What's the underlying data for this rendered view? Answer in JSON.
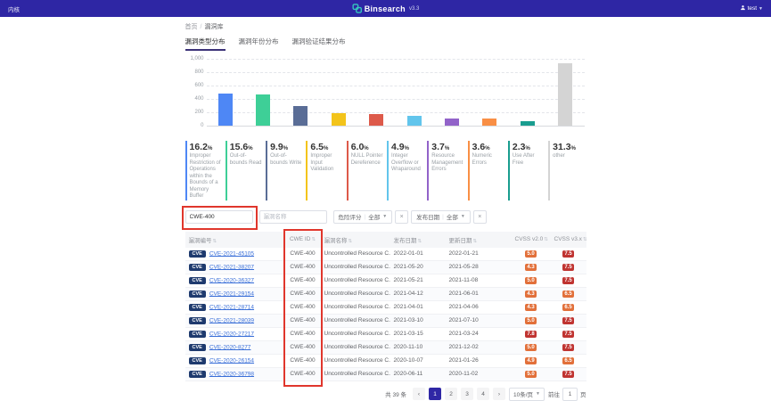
{
  "header": {
    "left_menu": "内核",
    "brand": "Binsearch",
    "version": "v3.3",
    "user": "test",
    "bar_color": "#2E26A4",
    "logo_color": "#35C8BE"
  },
  "breadcrumb": {
    "home": "首页",
    "separator": "/",
    "current": "漏洞库"
  },
  "tabs": [
    {
      "label": "漏洞类型分布",
      "active": true
    },
    {
      "label": "漏洞年份分布",
      "active": false
    },
    {
      "label": "漏洞验证结果分布",
      "active": false
    }
  ],
  "chart_data": {
    "type": "bar",
    "title": "漏洞类型分布",
    "categories": [
      "Improper Restriction of Operations within the Bounds of a Memory Buffer",
      "Out-of-bounds Read",
      "Out-of-bounds Write",
      "Improper Input Validation",
      "NULL Pointer Dereference",
      "Integer Overflow or Wraparound",
      "Resource Management Errors",
      "Numeric Errors",
      "Use After Free",
      "other"
    ],
    "values": [
      480,
      462,
      293,
      193,
      178,
      145,
      110,
      107,
      68,
      928
    ],
    "percentages": [
      "16.2",
      "15.6",
      "9.9",
      "6.5",
      "6.0",
      "4.9",
      "3.7",
      "3.6",
      "2.3",
      "31.3"
    ],
    "colors": [
      "#4E87F5",
      "#3ECF97",
      "#5A6D96",
      "#F3C41B",
      "#DD5A4A",
      "#62C5EC",
      "#9263C9",
      "#F98F45",
      "#199D8F",
      "#D4D4D4"
    ],
    "xlabel": "",
    "ylabel": "",
    "ylim": [
      0,
      1000
    ],
    "yticks": [
      "1,000",
      "800",
      "600",
      "400",
      "200",
      "0"
    ],
    "grid": true,
    "legend": false
  },
  "filters": {
    "cwe_input": {
      "value": "CWE-400"
    },
    "name_input": {
      "placeholder": "漏洞名称"
    },
    "chips": [
      {
        "label": "危险评分",
        "value": "全部",
        "close": "×"
      },
      {
        "label": "发布日期",
        "value": "全部",
        "close": "×"
      }
    ]
  },
  "table": {
    "headers": [
      "漏洞编号",
      "CWE ID",
      "漏洞名称",
      "发布日期",
      "更新日期",
      "CVSS v2.0",
      "CVSS v3.x"
    ],
    "badge_label": "CVE",
    "score_colors": {
      "high": "#C03431",
      "medium": "#E2703A"
    },
    "rows": [
      {
        "cve": "CVE-2021-45105",
        "cwe": "CWE-400",
        "name": "Uncontrolled Resource C...",
        "published": "2022-01-01",
        "updated": "2022-01-21",
        "cvss2": "5.0",
        "cvss3": "7.5"
      },
      {
        "cve": "CVE-2021-38207",
        "cwe": "CWE-400",
        "name": "Uncontrolled Resource C...",
        "published": "2021-05-20",
        "updated": "2021-05-28",
        "cvss2": "4.3",
        "cvss3": "7.5"
      },
      {
        "cve": "CVE-2020-36327",
        "cwe": "CWE-400",
        "name": "Uncontrolled Resource C...",
        "published": "2021-05-21",
        "updated": "2021-11-08",
        "cvss2": "5.0",
        "cvss3": "7.5"
      },
      {
        "cve": "CVE-2021-29154",
        "cwe": "CWE-400",
        "name": "Uncontrolled Resource C...",
        "published": "2021-04-12",
        "updated": "2021-06-01",
        "cvss2": "4.3",
        "cvss3": "6.5"
      },
      {
        "cve": "CVE-2021-28714",
        "cwe": "CWE-400",
        "name": "Uncontrolled Resource C...",
        "published": "2021-04-01",
        "updated": "2021-04-06",
        "cvss2": "4.3",
        "cvss3": "6.5"
      },
      {
        "cve": "CVE-2021-28039",
        "cwe": "CWE-400",
        "name": "Uncontrolled Resource C...",
        "published": "2021-03-10",
        "updated": "2021-07-10",
        "cvss2": "5.0",
        "cvss3": "7.5"
      },
      {
        "cve": "CVE-2020-27217",
        "cwe": "CWE-400",
        "name": "Uncontrolled Resource C...",
        "published": "2021-03-15",
        "updated": "2021-03-24",
        "cvss2": "7.8",
        "cvss3": "7.5"
      },
      {
        "cve": "CVE-2020-8277",
        "cwe": "CWE-400",
        "name": "Uncontrolled Resource C...",
        "published": "2020-11-10",
        "updated": "2021-12-02",
        "cvss2": "5.0",
        "cvss3": "7.5"
      },
      {
        "cve": "CVE-2020-26154",
        "cwe": "CWE-400",
        "name": "Uncontrolled Resource C...",
        "published": "2020-10-07",
        "updated": "2021-01-26",
        "cvss2": "4.9",
        "cvss3": "6.5"
      },
      {
        "cve": "CVE-2020-36798",
        "cwe": "CWE-400",
        "name": "Uncontrolled Resource C...",
        "published": "2020-06-11",
        "updated": "2020-11-02",
        "cvss2": "5.0",
        "cvss3": "7.5"
      }
    ]
  },
  "pagination": {
    "total": "共 39 条",
    "prev": "‹",
    "next": "›",
    "pages": [
      "1",
      "2",
      "3",
      "4"
    ],
    "active_page": "1",
    "page_size": "10条/页",
    "goto_prefix": "前往",
    "goto_value": "1",
    "goto_suffix": "页",
    "active_color": "#2F27A5"
  },
  "annotations": {
    "color": "#E0362C"
  }
}
